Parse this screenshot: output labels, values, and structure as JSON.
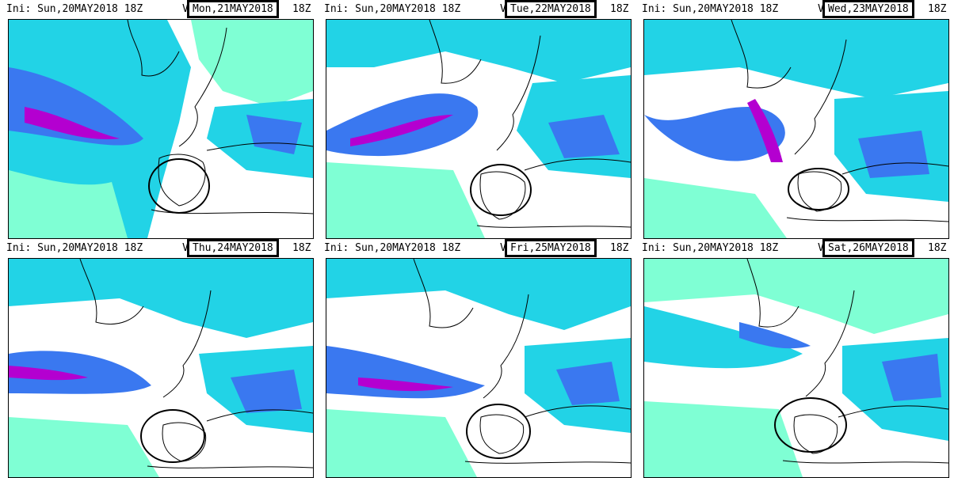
{
  "panels": [
    {
      "ini_label": "Ini:",
      "ini_value": "Sun,20MAY2018 18Z",
      "val_label": "Val:",
      "val_date": "Mon,21MAY2018",
      "val_hour": "18Z"
    },
    {
      "ini_label": "Ini:",
      "ini_value": "Sun,20MAY2018 18Z",
      "val_label": "Val:",
      "val_date": "Tue,22MAY2018",
      "val_hour": "18Z"
    },
    {
      "ini_label": "Ini:",
      "ini_value": "Sun,20MAY2018 18Z",
      "val_label": "Val:",
      "val_date": "Wed,23MAY2018",
      "val_hour": "18Z"
    },
    {
      "ini_label": "Ini:",
      "ini_value": "Sun,20MAY2018 18Z",
      "val_label": "Val:",
      "val_date": "Thu,24MAY2018",
      "val_hour": "18Z"
    },
    {
      "ini_label": "Ini:",
      "ini_value": "Sun,20MAY2018 18Z",
      "val_label": "Val:",
      "val_date": "Fri,25MAY2018",
      "val_hour": "18Z"
    },
    {
      "ini_label": "Ini:",
      "ini_value": "Sun,20MAY2018 18Z",
      "val_label": "Val:",
      "val_date": "Sat,26MAY2018",
      "val_hour": "18Z"
    }
  ],
  "colors": {
    "field_light": "#7fffd4",
    "field_cyan": "#22d3e6",
    "field_blue": "#3a78f0",
    "field_indigo": "#4b3cc8",
    "field_magenta": "#b400d0",
    "coast": "#000000",
    "circle": "#000000"
  }
}
